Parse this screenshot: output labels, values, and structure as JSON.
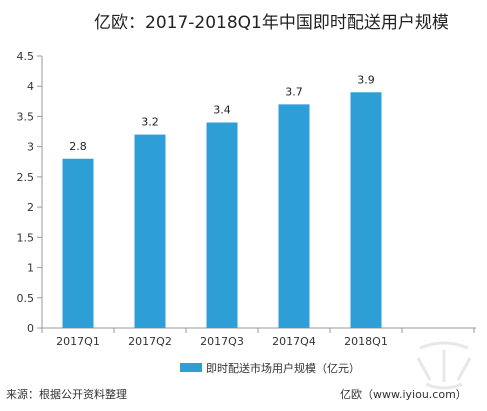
{
  "title": "亿欧：2017-2018Q1年中国即时配送用户规模",
  "footer": {
    "source": "来源：根据公开资料整理",
    "credit": "亿欧（www.iyiou.com）"
  },
  "colors": {
    "bar": "#2E9FD6",
    "axis": "#9a9a9a",
    "text": "#222222"
  },
  "chart_data": {
    "type": "bar",
    "categories": [
      "2017Q1",
      "2017Q2",
      "2017Q3",
      "2017Q4",
      "2018Q1"
    ],
    "series": [
      {
        "name": "即时配送市场用户规模（亿元）",
        "values": [
          2.8,
          3.2,
          3.4,
          3.7,
          3.9
        ]
      }
    ],
    "data_labels": [
      "2.8",
      "3.2",
      "3.4",
      "3.7",
      "3.9"
    ],
    "y_ticks": [
      "0",
      "0.5",
      "1",
      "1.5",
      "2",
      "2.5",
      "3",
      "3.5",
      "4",
      "4.5"
    ],
    "ylim": [
      0,
      4.5
    ],
    "grid": false,
    "legend_position": "bottom"
  }
}
